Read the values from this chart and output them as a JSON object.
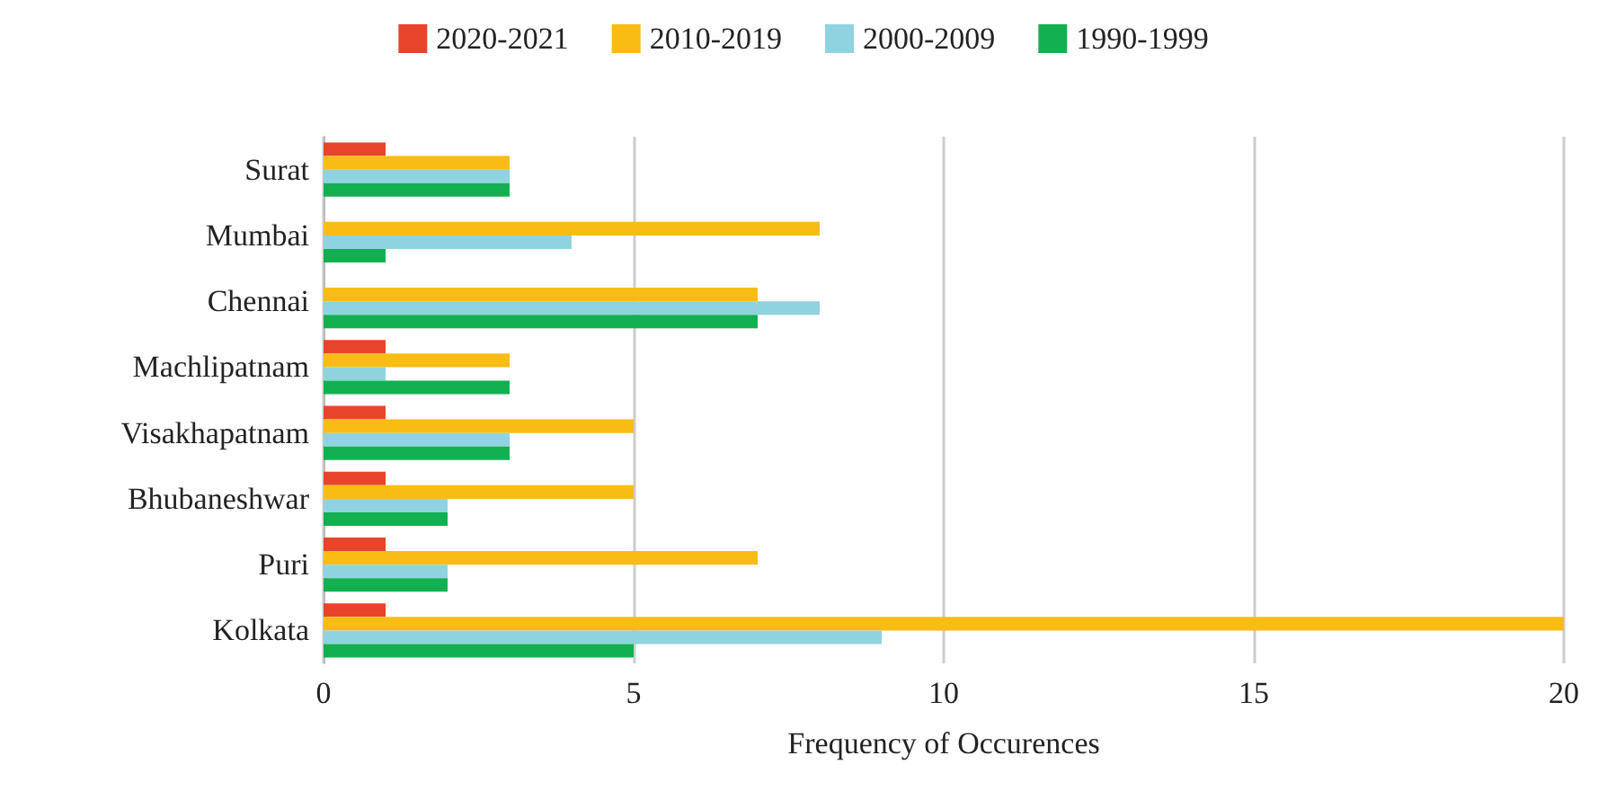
{
  "chart_data": {
    "type": "bar",
    "orientation": "horizontal",
    "xlabel": "Frequency of Occurences",
    "categories": [
      "Surat",
      "Mumbai",
      "Chennai",
      "Machlipatnam",
      "Visakhapatnam",
      "Bhubaneshwar",
      "Puri",
      "Kolkata"
    ],
    "series": [
      {
        "name": "2020-2021",
        "color": "#e8442c",
        "values": [
          1,
          0,
          0,
          1,
          1,
          1,
          1,
          1
        ]
      },
      {
        "name": "2010-2019",
        "color": "#f9bc15",
        "values": [
          3,
          8,
          7,
          3,
          5,
          5,
          7,
          20
        ]
      },
      {
        "name": "2000-2009",
        "color": "#8fd3e0",
        "values": [
          3,
          4,
          8,
          1,
          3,
          2,
          2,
          9
        ]
      },
      {
        "name": "1990-1999",
        "color": "#12b050",
        "values": [
          3,
          1,
          7,
          3,
          3,
          2,
          2,
          5
        ]
      }
    ],
    "xlim": [
      0,
      20
    ],
    "xticks": [
      0,
      5,
      10,
      15,
      20
    ],
    "grid": "x",
    "legend": "top"
  }
}
